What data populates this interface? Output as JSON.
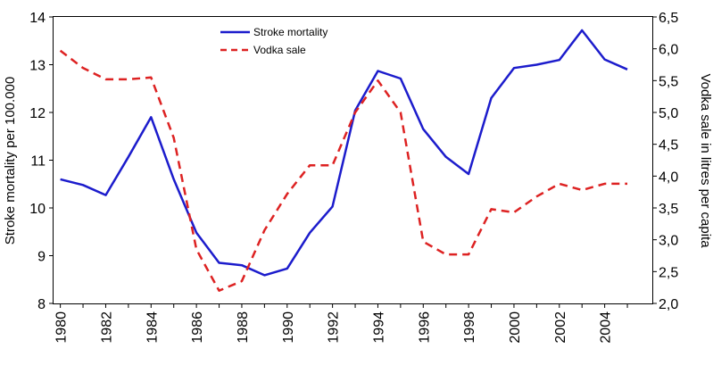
{
  "chart_data": {
    "type": "line",
    "ylabel": "Stroke mortality per 100.000",
    "y2label": "Vodka sale in litres per capita",
    "x": [
      1980,
      1981,
      1982,
      1983,
      1984,
      1985,
      1986,
      1987,
      1988,
      1989,
      1990,
      1991,
      1992,
      1993,
      1994,
      1995,
      1996,
      1997,
      1998,
      1999,
      2000,
      2001,
      2002,
      2003,
      2004,
      2005
    ],
    "xlim": [
      1979.7,
      2006.1
    ],
    "x_ticks": [
      "1980",
      "1982",
      "1984",
      "1986",
      "1988",
      "1990",
      "1992",
      "1994",
      "1996",
      "1998",
      "2000",
      "2002",
      "2004"
    ],
    "ylim": [
      8,
      14
    ],
    "y_ticks": [
      "8",
      "9",
      "10",
      "11",
      "12",
      "13",
      "14"
    ],
    "y2lim": [
      2.0,
      6.5
    ],
    "y2_ticks": [
      "2,0",
      "2,5",
      "3,0",
      "3,5",
      "4,0",
      "4,5",
      "5,0",
      "5,5",
      "6,0",
      "6,5"
    ],
    "grid": false,
    "legend_position": "top-center",
    "series": [
      {
        "name": "Stroke mortality",
        "axis": "left",
        "color": "#1c1ccc",
        "style": "solid",
        "values": [
          10.6,
          10.48,
          10.27,
          11.07,
          11.9,
          10.6,
          9.48,
          8.85,
          8.8,
          8.59,
          8.73,
          9.48,
          10.03,
          12.04,
          12.87,
          12.71,
          11.65,
          11.07,
          10.71,
          12.3,
          12.93,
          13.0,
          13.1,
          13.72,
          13.11,
          12.9
        ]
      },
      {
        "name": "Vodka sale",
        "axis": "right",
        "color": "#dd2222",
        "style": "dashed",
        "values": [
          5.97,
          5.7,
          5.52,
          5.52,
          5.55,
          4.6,
          2.85,
          2.2,
          2.35,
          3.15,
          3.72,
          4.17,
          4.17,
          5.0,
          5.5,
          5.0,
          2.97,
          2.77,
          2.77,
          3.48,
          3.43,
          3.68,
          3.88,
          3.78,
          3.88,
          3.88
        ]
      }
    ]
  }
}
